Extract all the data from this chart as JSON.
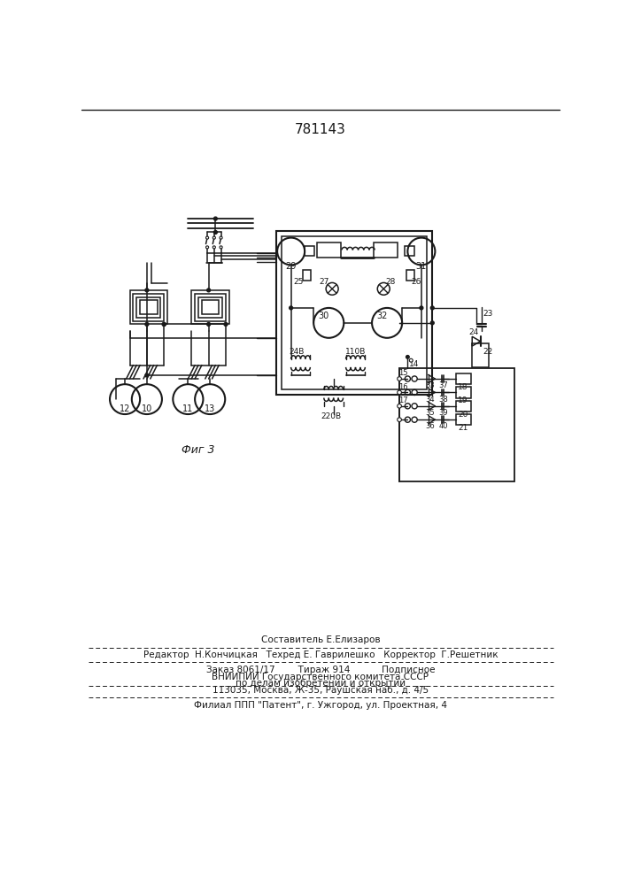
{
  "title": "781143",
  "fig_label": "Фиг 3",
  "footer_lines": [
    "Составитель Е.Елизаров",
    "Редактор  Н.Кончицкая   Техред Е. Гаврилешко   Корректор  Г.Решетник",
    "Заказ 8061/17        Тираж 914           Подписное",
    "ВНИИПИИ Государственного комитета СССР",
    "по делам изобретений и открытий",
    "113035, Москва, Ж-35, Раушская наб., д. 4/5",
    "Филиал ППП \"Патент\", г. Ужгород, ул. Проектная, 4"
  ],
  "bg_color": "#ffffff",
  "line_color": "#1a1a1a",
  "text_color": "#1a1a1a"
}
